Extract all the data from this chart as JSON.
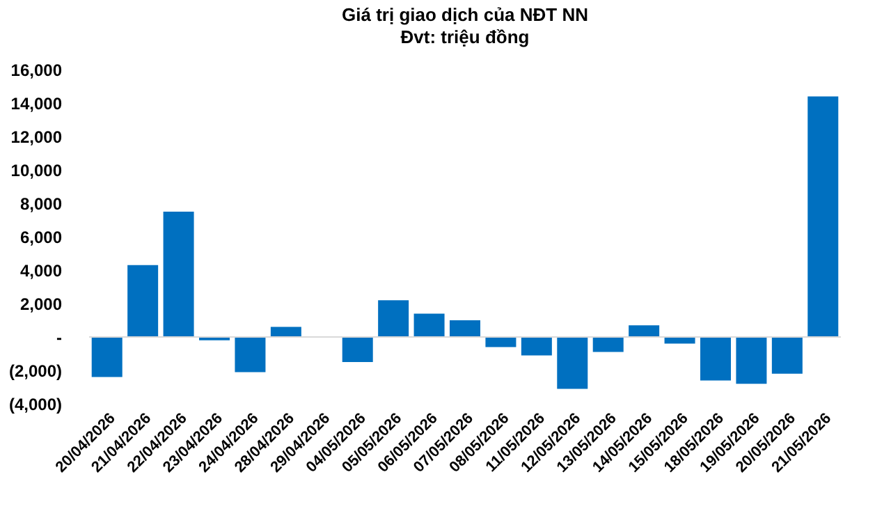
{
  "chart_data": {
    "type": "bar",
    "title": "Giá trị giao dịch của NĐT NN",
    "subtitle": "Đvt: triệu đồng",
    "categories": [
      "20/04/2026",
      "21/04/2026",
      "22/04/2026",
      "23/04/2026",
      "24/04/2026",
      "28/04/2026",
      "29/04/2026",
      "04/05/2026",
      "05/05/2026",
      "06/05/2026",
      "07/05/2026",
      "08/05/2026",
      "11/05/2026",
      "12/05/2026",
      "13/05/2026",
      "14/05/2026",
      "15/05/2026",
      "18/05/2026",
      "19/05/2026",
      "20/05/2026",
      "21/05/2026"
    ],
    "values": [
      -2400,
      4300,
      7500,
      -200,
      -2100,
      600,
      0,
      -1500,
      2200,
      1400,
      1000,
      -600,
      -1100,
      -3100,
      -900,
      700,
      -400,
      -2600,
      -2800,
      -2200,
      14400
    ],
    "color": "#0070c0",
    "ylim": [
      -4000,
      16000
    ],
    "yticks": [
      {
        "value": -4000,
        "label": "(4,000)"
      },
      {
        "value": -2000,
        "label": "(2,000)"
      },
      {
        "value": 0,
        "label": "-"
      },
      {
        "value": 2000,
        "label": "2,000"
      },
      {
        "value": 4000,
        "label": "4,000"
      },
      {
        "value": 6000,
        "label": "6,000"
      },
      {
        "value": 8000,
        "label": "8,000"
      },
      {
        "value": 10000,
        "label": "10,000"
      },
      {
        "value": 12000,
        "label": "12,000"
      },
      {
        "value": 14000,
        "label": "14,000"
      },
      {
        "value": 16000,
        "label": "16,000"
      }
    ],
    "ref_lines": [
      {
        "axis": "y",
        "value": 0,
        "color": "#d9d9d9"
      }
    ],
    "grid": false
  }
}
